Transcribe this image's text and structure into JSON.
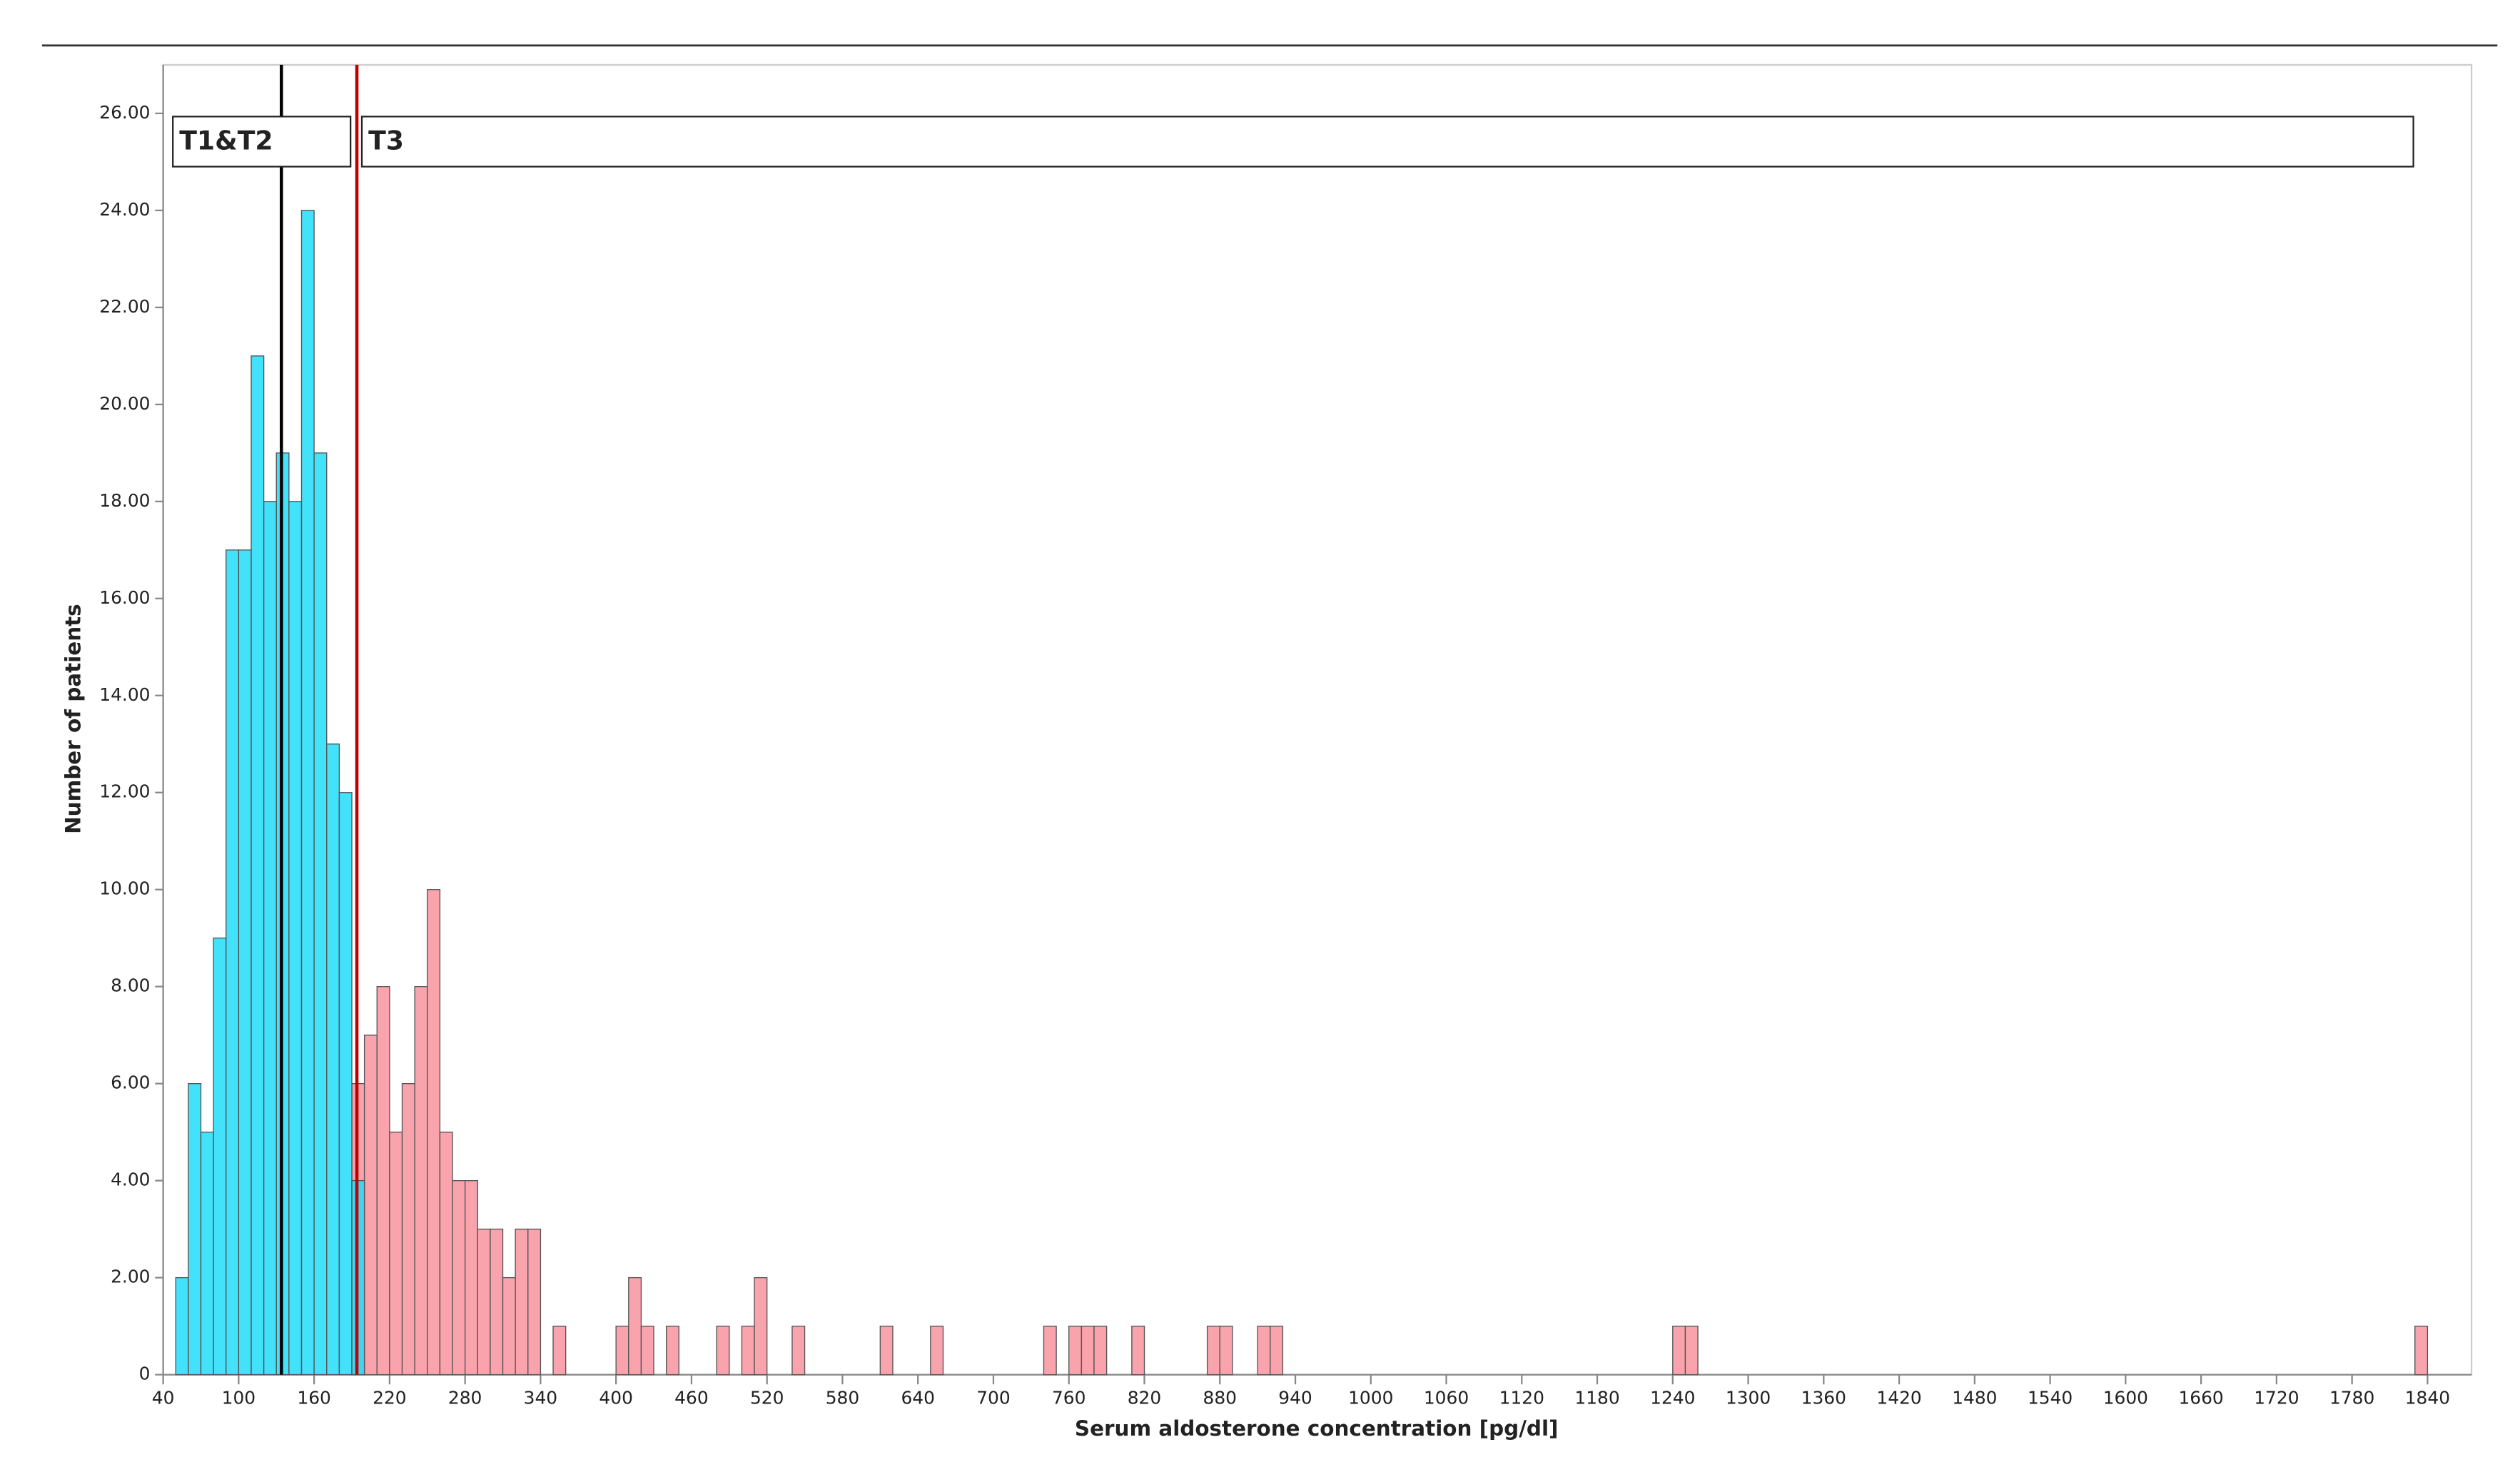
{
  "chart_data": {
    "type": "histogram",
    "x_label": "Serum aldosterone concentration [pg/dl]",
    "y_label": "Number of patients",
    "xlim": [
      40,
      1875
    ],
    "ylim": [
      0,
      27
    ],
    "xticks": [
      40,
      100,
      160,
      220,
      280,
      340,
      400,
      460,
      520,
      580,
      640,
      700,
      760,
      820,
      880,
      940,
      1000,
      1060,
      1120,
      1180,
      1240,
      1300,
      1360,
      1420,
      1480,
      1540,
      1600,
      1660,
      1720,
      1780,
      1840
    ],
    "yticks": [
      0,
      {
        "value": 2,
        "label": "2.00"
      },
      {
        "value": 4,
        "label": "4.00"
      },
      {
        "value": 6,
        "label": "6.00"
      },
      {
        "value": 8,
        "label": "8.00"
      },
      {
        "value": 10,
        "label": "10.00"
      },
      {
        "value": 12,
        "label": "12.00"
      },
      {
        "value": 14,
        "label": "14.00"
      },
      {
        "value": 16,
        "label": "16.00"
      },
      {
        "value": 18,
        "label": "18.00"
      },
      {
        "value": 20,
        "label": "20.00"
      },
      {
        "value": 22,
        "label": "22.00"
      },
      {
        "value": 24,
        "label": "24.00"
      },
      {
        "value": 26,
        "label": "26.00"
      }
    ],
    "series": [
      {
        "name": "T3",
        "color": "#f9a3ad",
        "bins": [
          190,
          200,
          210,
          220,
          230,
          240,
          250,
          260,
          270,
          280,
          290,
          300,
          310,
          320,
          330,
          340,
          350,
          360,
          370,
          380,
          390,
          400,
          410,
          420,
          430,
          440,
          450,
          460,
          470,
          480,
          490,
          500,
          510,
          520,
          530,
          540,
          550,
          560,
          570,
          580,
          590,
          600,
          610,
          620,
          630,
          640,
          650,
          660,
          670,
          680,
          690,
          700,
          710,
          720,
          730,
          740,
          750,
          760,
          770,
          780,
          790,
          800,
          810,
          820,
          830,
          840,
          850,
          860,
          870,
          880,
          890,
          900,
          910,
          920,
          930,
          940,
          950,
          960,
          970,
          980,
          990,
          1000,
          1010,
          1020,
          1030,
          1040,
          1050,
          1060,
          1070,
          1080,
          1090,
          1100,
          1110,
          1120,
          1130,
          1140,
          1150,
          1160,
          1170,
          1180,
          1190,
          1200,
          1210,
          1220,
          1230,
          1240,
          1250,
          1260,
          1270,
          1280,
          1290,
          1300,
          1310,
          1320,
          1330,
          1340,
          1350,
          1360,
          1370,
          1380,
          1390,
          1400,
          1410,
          1420,
          1430,
          1440,
          1450,
          1460,
          1470,
          1480,
          1490,
          1500,
          1510,
          1520,
          1530,
          1540,
          1550,
          1560,
          1570,
          1580,
          1590,
          1600,
          1610,
          1620,
          1630,
          1640,
          1650,
          1660,
          1670,
          1680,
          1690,
          1700,
          1710,
          1720,
          1730,
          1740,
          1750,
          1760,
          1770,
          1780,
          1790,
          1800,
          1810,
          1820,
          1830,
          1840
        ],
        "values": [
          6,
          7,
          8,
          5,
          6,
          8,
          10,
          5,
          4,
          4,
          3,
          3,
          2,
          3,
          3,
          0,
          1,
          0,
          0,
          0,
          0,
          1,
          2,
          1,
          0,
          1,
          0,
          0,
          0,
          1,
          0,
          1,
          2,
          0,
          0,
          1,
          0,
          0,
          0,
          0,
          0,
          0,
          1,
          0,
          0,
          0,
          1,
          0,
          0,
          0,
          0,
          0,
          0,
          0,
          0,
          1,
          0,
          1,
          1,
          1,
          0,
          0,
          1,
          0,
          0,
          0,
          0,
          0,
          1,
          1,
          0,
          0,
          1,
          1,
          0,
          0,
          0,
          0,
          0,
          0,
          0,
          0,
          0,
          0,
          0,
          0,
          0,
          0,
          0,
          0,
          0,
          0,
          0,
          0,
          0,
          0,
          0,
          0,
          0,
          0,
          0,
          0,
          0,
          0,
          0,
          1,
          1,
          0,
          0,
          0,
          0,
          0,
          0,
          0,
          0,
          0,
          0,
          0,
          0,
          0,
          0,
          0,
          0,
          0,
          0,
          0,
          0,
          0,
          0,
          0,
          0,
          0,
          0,
          0,
          0,
          0,
          0,
          0,
          0,
          0,
          0,
          0,
          0,
          0,
          0,
          0,
          0,
          0,
          0,
          0,
          0,
          0,
          0,
          0,
          0,
          0,
          0,
          0,
          0,
          0,
          0,
          0,
          0,
          0,
          1
        ]
      },
      {
        "name": "T1&T2",
        "color": "#22ddfa",
        "bins": [
          50,
          60,
          70,
          80,
          90,
          100,
          110,
          120,
          130,
          140,
          150,
          160,
          170,
          180,
          190,
          200
        ],
        "values": [
          2,
          6,
          5,
          9,
          17,
          17,
          21,
          18,
          19,
          18,
          24,
          19,
          13,
          12,
          4
        ]
      }
    ],
    "vlines": [
      {
        "x": 134,
        "color": "#000000"
      },
      {
        "x": 194,
        "color": "#c00000"
      }
    ]
  }
}
